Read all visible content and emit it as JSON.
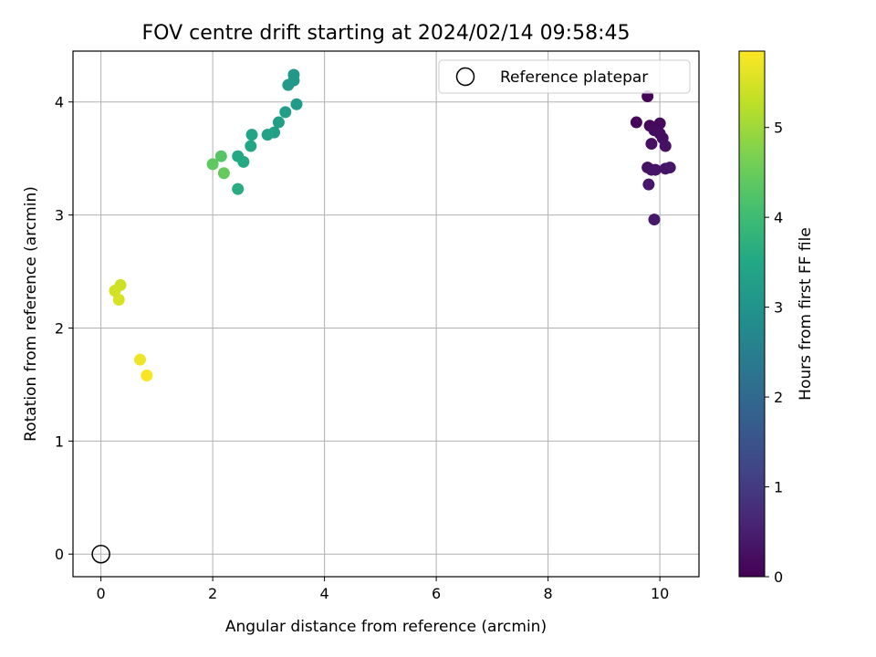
{
  "chart_data": {
    "type": "scatter",
    "title": "FOV centre drift starting at 2024/02/14 09:58:45",
    "xlabel": "Angular distance from reference (arcmin)",
    "ylabel": "Rotation from reference (arcmin)",
    "xlim": [
      -0.5,
      10.7
    ],
    "ylim": [
      -0.2,
      4.45
    ],
    "xticks": [
      0,
      2,
      4,
      6,
      8,
      10
    ],
    "yticks": [
      0,
      1,
      2,
      3,
      4
    ],
    "grid": true,
    "legend": {
      "position": "top-right",
      "entries": [
        "Reference platepar"
      ]
    },
    "reference_point": {
      "label": "Reference platepar",
      "x": 0,
      "y": 0
    },
    "colorbar": {
      "label": "Hours from first FF file",
      "colormap": "viridis",
      "range": [
        0,
        5.85
      ],
      "ticks": [
        0,
        1,
        2,
        3,
        4,
        5
      ]
    },
    "series": [
      {
        "points": [
          {
            "x": 9.78,
            "y": 4.05,
            "c": 0.05
          },
          {
            "x": 9.58,
            "y": 3.82,
            "c": 0.1
          },
          {
            "x": 9.82,
            "y": 3.79,
            "c": 0.12
          },
          {
            "x": 10.0,
            "y": 3.81,
            "c": 0.15
          },
          {
            "x": 9.9,
            "y": 3.75,
            "c": 0.18
          },
          {
            "x": 10.0,
            "y": 3.72,
            "c": 0.2
          },
          {
            "x": 10.05,
            "y": 3.68,
            "c": 0.22
          },
          {
            "x": 9.85,
            "y": 3.63,
            "c": 0.24
          },
          {
            "x": 10.1,
            "y": 3.61,
            "c": 0.26
          },
          {
            "x": 9.78,
            "y": 3.42,
            "c": 0.28
          },
          {
            "x": 9.85,
            "y": 3.4,
            "c": 0.3
          },
          {
            "x": 9.92,
            "y": 3.4,
            "c": 0.32
          },
          {
            "x": 10.1,
            "y": 3.41,
            "c": 0.34
          },
          {
            "x": 10.18,
            "y": 3.42,
            "c": 0.36
          },
          {
            "x": 9.8,
            "y": 3.27,
            "c": 0.38
          },
          {
            "x": 9.9,
            "y": 2.96,
            "c": 0.4
          },
          {
            "x": 3.45,
            "y": 4.24,
            "c": 3.1
          },
          {
            "x": 3.45,
            "y": 4.19,
            "c": 3.12
          },
          {
            "x": 3.35,
            "y": 4.15,
            "c": 3.15
          },
          {
            "x": 3.5,
            "y": 3.98,
            "c": 3.18
          },
          {
            "x": 3.3,
            "y": 3.91,
            "c": 3.22
          },
          {
            "x": 3.18,
            "y": 3.82,
            "c": 3.26
          },
          {
            "x": 3.1,
            "y": 3.73,
            "c": 3.3
          },
          {
            "x": 2.98,
            "y": 3.71,
            "c": 3.35
          },
          {
            "x": 2.7,
            "y": 3.71,
            "c": 3.4
          },
          {
            "x": 2.68,
            "y": 3.61,
            "c": 3.45
          },
          {
            "x": 2.45,
            "y": 3.52,
            "c": 3.5
          },
          {
            "x": 2.55,
            "y": 3.47,
            "c": 3.55
          },
          {
            "x": 2.45,
            "y": 3.23,
            "c": 3.62
          },
          {
            "x": 2.15,
            "y": 3.52,
            "c": 4.3
          },
          {
            "x": 2.0,
            "y": 3.45,
            "c": 4.38
          },
          {
            "x": 2.2,
            "y": 3.37,
            "c": 4.45
          },
          {
            "x": 0.35,
            "y": 2.38,
            "c": 5.4
          },
          {
            "x": 0.25,
            "y": 2.33,
            "c": 5.45
          },
          {
            "x": 0.32,
            "y": 2.25,
            "c": 5.5
          },
          {
            "x": 0.7,
            "y": 1.72,
            "c": 5.7
          },
          {
            "x": 0.82,
            "y": 1.58,
            "c": 5.8
          }
        ]
      }
    ]
  }
}
